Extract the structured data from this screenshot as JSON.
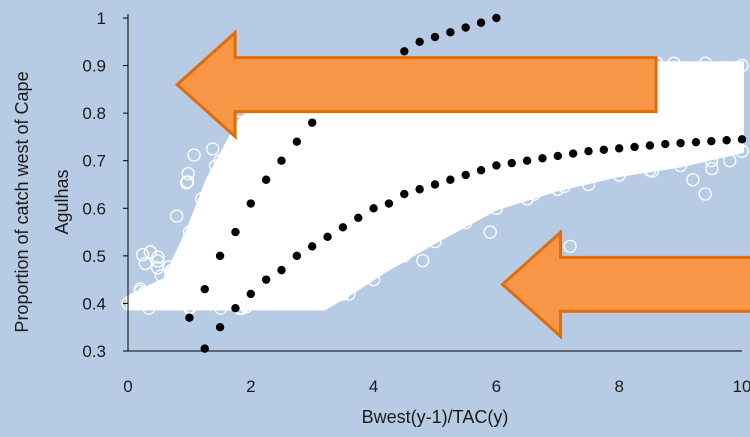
{
  "chart_data": {
    "type": "scatter",
    "xlabel": "Bwest(y-1)/TAC(y)",
    "ylabel_lines": [
      "Proportion of catch west of Cape",
      "Agulhas"
    ],
    "xlim": [
      0,
      10
    ],
    "ylim": [
      0.3,
      1.0
    ],
    "x_ticks": [
      0,
      2,
      4,
      6,
      8,
      10
    ],
    "y_ticks": [
      0.3,
      0.4,
      0.5,
      0.6,
      0.7,
      0.8,
      0.9,
      1.0
    ],
    "x_tick_labels": [
      "0",
      "2",
      "4",
      "6",
      "8",
      "10"
    ],
    "y_tick_labels": [
      "0.3",
      "0.4",
      "0.5",
      "0.6",
      "0.7",
      "0.8",
      "0.9",
      "1"
    ],
    "grid": false,
    "legend": "none",
    "series": [
      {
        "style": "hollow-white-circles",
        "description_points": [
          [
            0.0,
            0.4
          ],
          [
            0.5,
            0.42
          ],
          [
            0.8,
            0.47
          ],
          [
            1.0,
            0.55
          ],
          [
            1.2,
            0.62
          ],
          [
            1.5,
            0.7
          ],
          [
            1.8,
            0.78
          ],
          [
            2.2,
            0.85
          ],
          [
            2.8,
            0.88
          ],
          [
            3.5,
            0.9
          ],
          [
            5.0,
            0.9
          ],
          [
            8.0,
            0.9
          ],
          [
            10.0,
            0.9
          ],
          [
            2.0,
            0.4
          ],
          [
            3.0,
            0.4
          ],
          [
            3.5,
            0.42
          ],
          [
            4.0,
            0.45
          ],
          [
            4.5,
            0.5
          ],
          [
            5.0,
            0.53
          ],
          [
            5.5,
            0.57
          ],
          [
            6.0,
            0.6
          ],
          [
            6.5,
            0.62
          ],
          [
            7.0,
            0.64
          ],
          [
            7.5,
            0.65
          ],
          [
            8.0,
            0.67
          ],
          [
            8.5,
            0.68
          ],
          [
            9.0,
            0.69
          ],
          [
            9.5,
            0.7
          ],
          [
            10.0,
            0.72
          ],
          [
            3.6,
            0.42
          ],
          [
            4.8,
            0.49
          ],
          [
            5.9,
            0.55
          ],
          [
            7.2,
            0.52
          ],
          [
            9.2,
            0.66
          ],
          [
            9.4,
            0.63
          ],
          [
            9.8,
            0.7
          ]
        ]
      },
      {
        "style": "black-dots",
        "points": [
          [
            1.0,
            0.37
          ],
          [
            1.25,
            0.43
          ],
          [
            1.5,
            0.5
          ],
          [
            1.75,
            0.55
          ],
          [
            2.0,
            0.61
          ],
          [
            2.25,
            0.66
          ],
          [
            2.5,
            0.7
          ],
          [
            2.75,
            0.74
          ],
          [
            3.0,
            0.78
          ],
          [
            3.25,
            0.81
          ],
          [
            3.5,
            0.84
          ],
          [
            3.75,
            0.86
          ],
          [
            4.0,
            0.89
          ],
          [
            4.25,
            0.91
          ],
          [
            4.5,
            0.93
          ],
          [
            4.75,
            0.95
          ],
          [
            5.0,
            0.96
          ],
          [
            5.25,
            0.97
          ],
          [
            5.5,
            0.98
          ],
          [
            5.75,
            0.99
          ],
          [
            6.0,
            1.0
          ]
        ]
      },
      {
        "style": "black-dots",
        "points": [
          [
            1.25,
            0.305
          ],
          [
            1.5,
            0.35
          ],
          [
            1.75,
            0.39
          ],
          [
            2.0,
            0.42
          ],
          [
            2.25,
            0.45
          ],
          [
            2.5,
            0.47
          ],
          [
            2.75,
            0.5
          ],
          [
            3.0,
            0.52
          ],
          [
            3.25,
            0.54
          ],
          [
            3.5,
            0.56
          ],
          [
            3.75,
            0.58
          ],
          [
            4.0,
            0.6
          ],
          [
            4.25,
            0.61
          ],
          [
            4.5,
            0.63
          ],
          [
            4.75,
            0.64
          ],
          [
            5.0,
            0.65
          ],
          [
            5.25,
            0.66
          ],
          [
            5.5,
            0.67
          ],
          [
            5.75,
            0.68
          ],
          [
            6.0,
            0.69
          ],
          [
            6.25,
            0.695
          ],
          [
            6.5,
            0.7
          ],
          [
            6.75,
            0.705
          ],
          [
            7.0,
            0.71
          ],
          [
            7.25,
            0.715
          ],
          [
            7.5,
            0.72
          ],
          [
            7.75,
            0.723
          ],
          [
            8.0,
            0.726
          ],
          [
            8.25,
            0.729
          ],
          [
            8.5,
            0.732
          ],
          [
            8.75,
            0.735
          ],
          [
            9.0,
            0.737
          ],
          [
            9.25,
            0.739
          ],
          [
            9.5,
            0.741
          ],
          [
            9.75,
            0.743
          ],
          [
            10.0,
            0.745
          ]
        ]
      }
    ],
    "annotations": [
      {
        "type": "arrow-left",
        "color": "#f79646",
        "border": "#e36c09",
        "at": {
          "x_from": 8.6,
          "x_to": 0.8,
          "y": 0.86
        }
      },
      {
        "type": "arrow-left",
        "color": "#f79646",
        "border": "#e36c09",
        "at": {
          "x_from": 10.2,
          "x_to": 6.1,
          "y": 0.44
        }
      }
    ]
  }
}
